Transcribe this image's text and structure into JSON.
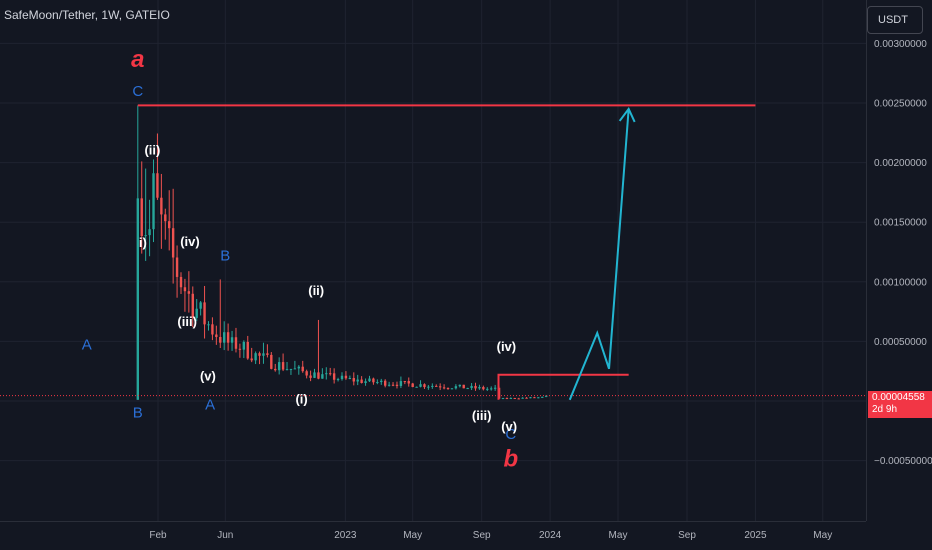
{
  "header": {
    "symbol": "SafeMoon/Tether, 1W, GATEIO",
    "currency": "USDT"
  },
  "last_price": {
    "value": "0.00004558",
    "countdown": "2d 9h"
  },
  "colors": {
    "background": "#131722",
    "up": "#26a69a",
    "down": "#ef5350",
    "annotation_red": "#f23645",
    "projection": "#22b5d1",
    "wave_label": "#ffffff",
    "wave_label_blue": "#2b6fd6"
  },
  "chart_data": {
    "type": "candlestick",
    "y_axis": {
      "ticks": [
        "0.00300000",
        "0.00250000",
        "0.00200000",
        "0.00150000",
        "0.00100000",
        "0.00050000",
        "0.00000000",
        "−0.00050000"
      ],
      "tick_values": [
        0.003,
        0.0025,
        0.002,
        0.0015,
        0.001,
        0.0005,
        0,
        -0.0005
      ]
    },
    "x_axis": {
      "ticks": [
        "Feb",
        "Jun",
        "2023",
        "May",
        "Sep",
        "2024",
        "May",
        "Sep",
        "2025",
        "May"
      ],
      "tick_dates": [
        "2022-02-01",
        "2022-06-01",
        "2023-01-01",
        "2023-05-01",
        "2023-09-01",
        "2024-01-01",
        "2024-05-01",
        "2024-09-01",
        "2025-01-01",
        "2025-05-01"
      ]
    },
    "grid": true,
    "candles_summary": {
      "first_date": "2021-12-27",
      "high": 0.00248,
      "low": 1e-05,
      "last": 4.558e-05
    },
    "resistance_line": {
      "price": 0.00248,
      "from": "2021-12-27",
      "to": "2025-01-01"
    },
    "range_box": {
      "top": 0.00022,
      "bottom": 1e-05,
      "from": "2023-10-01",
      "to": "2024-05-20"
    },
    "projection_path": [
      {
        "date": "2024-02-05",
        "price": 1e-05
      },
      {
        "date": "2024-03-25",
        "price": 0.00057
      },
      {
        "date": "2024-04-15",
        "price": 0.00027
      },
      {
        "date": "2024-05-20",
        "price": 0.00245
      }
    ],
    "wave_labels": [
      {
        "text": "a",
        "date": "2021-12-27",
        "price": 0.0028,
        "style": "big-red"
      },
      {
        "text": "b",
        "date": "2023-10-23",
        "price": -0.00055,
        "style": "big-red"
      },
      {
        "text": "C",
        "date": "2021-12-27",
        "price": 0.00256,
        "style": "blue"
      },
      {
        "text": "B",
        "date": "2021-12-27",
        "price": -0.00014,
        "style": "blue"
      },
      {
        "text": "A",
        "date": "2021-09-27",
        "price": 0.00043,
        "style": "blue"
      },
      {
        "text": "B",
        "date": "2022-06-01",
        "price": 0.00118,
        "style": "blue"
      },
      {
        "text": "A",
        "date": "2022-05-05",
        "price": -7e-05,
        "style": "blue"
      },
      {
        "text": "C",
        "date": "2023-10-23",
        "price": -0.00032,
        "style": "blue"
      },
      {
        "text": "(ii)",
        "date": "2022-01-22",
        "price": 0.00207,
        "style": "white"
      },
      {
        "text": "i)",
        "date": "2022-01-05",
        "price": 0.00129,
        "style": "white"
      },
      {
        "text": "(iv)",
        "date": "2022-03-30",
        "price": 0.0013,
        "style": "white"
      },
      {
        "text": "(iii)",
        "date": "2022-03-25",
        "price": 0.00063,
        "style": "white"
      },
      {
        "text": "(v)",
        "date": "2022-05-01",
        "price": 0.00017,
        "style": "white"
      },
      {
        "text": "(ii)",
        "date": "2022-11-10",
        "price": 0.00089,
        "style": "white"
      },
      {
        "text": "(i)",
        "date": "2022-10-15",
        "price": -2e-05,
        "style": "white"
      },
      {
        "text": "(iv)",
        "date": "2023-10-15",
        "price": 0.00042,
        "style": "white"
      },
      {
        "text": "(iii)",
        "date": "2023-09-01",
        "price": -0.00016,
        "style": "white"
      },
      {
        "text": "(v)",
        "date": "2023-10-20",
        "price": -0.00025,
        "style": "white"
      }
    ]
  }
}
